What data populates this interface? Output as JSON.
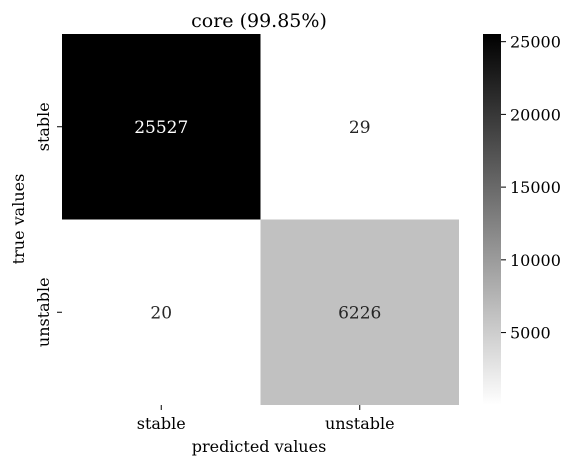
{
  "chart_data": {
    "type": "heatmap",
    "title": "core (99.85%)",
    "xlabel": "predicted values",
    "ylabel": "true values",
    "x_categories": [
      "stable",
      "unstable"
    ],
    "y_categories": [
      "stable",
      "unstable"
    ],
    "matrix": [
      [
        25527,
        29
      ],
      [
        20,
        6226
      ]
    ],
    "colormap": "Greys",
    "colorbar": {
      "vmin": 20,
      "vmax": 25527,
      "ticks": [
        5000,
        10000,
        15000,
        20000,
        25000
      ],
      "tick_labels": [
        "5000",
        "10000",
        "15000",
        "20000",
        "25000"
      ]
    },
    "colors": {
      "low": "#ffffff",
      "high": "#000000"
    },
    "grid": false,
    "legend": "colorbar-right"
  }
}
